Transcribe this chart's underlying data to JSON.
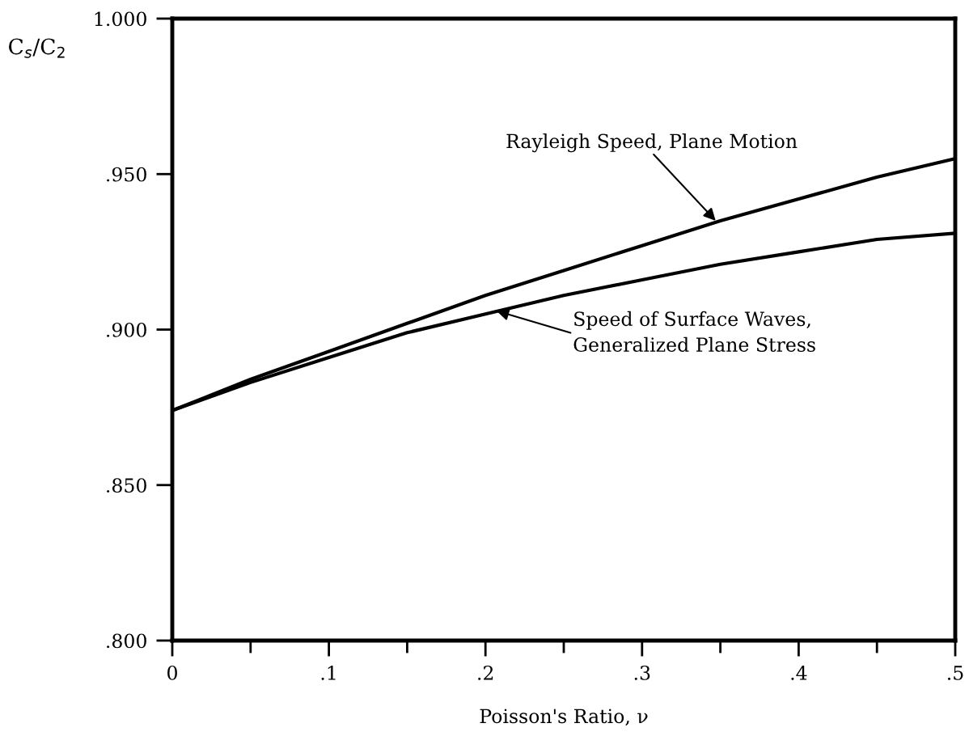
{
  "chart_data": {
    "type": "line",
    "xlabel": "Poisson's Ratio, ν",
    "ylabel": "C$_{s}$/C$_{2}$",
    "x": [
      0,
      0.05,
      0.1,
      0.15,
      0.2,
      0.25,
      0.3,
      0.35,
      0.4,
      0.45,
      0.5
    ],
    "series": [
      {
        "color": "#000000",
        "values": [
          0.874,
          0.884,
          0.893,
          0.902,
          0.911,
          0.919,
          0.927,
          0.935,
          0.942,
          0.949,
          0.955
        ]
      },
      {
        "color": "#000000",
        "values": [
          0.874,
          0.883,
          0.891,
          0.899,
          0.905,
          0.911,
          0.916,
          0.921,
          0.925,
          0.929,
          0.931
        ]
      }
    ],
    "xlim": [
      0,
      0.5
    ],
    "ylim": [
      0.8,
      1.0
    ],
    "xticks": [
      {
        "value": 0,
        "label": "0"
      },
      {
        "value": 0.05,
        "label": null
      },
      {
        "value": 0.1,
        "label": ".1"
      },
      {
        "value": 0.15,
        "label": null
      },
      {
        "value": 0.2,
        "label": ".2"
      },
      {
        "value": 0.25,
        "label": null
      },
      {
        "value": 0.3,
        "label": ".3"
      },
      {
        "value": 0.35,
        "label": null
      },
      {
        "value": 0.4,
        "label": ".4"
      },
      {
        "value": 0.45,
        "label": null
      },
      {
        "value": 0.5,
        "label": ".5"
      }
    ],
    "yticks": [
      {
        "value": 0.8,
        "label": ".800"
      },
      {
        "value": 0.85,
        "label": ".850"
      },
      {
        "value": 0.9,
        "label": ".900"
      },
      {
        "value": 0.95,
        "label": ".950"
      },
      {
        "value": 1.0,
        "label": "1.000"
      }
    ],
    "annotations": [
      {
        "text": "Rayleigh Speed, Plane Motion",
        "x": 0.347,
        "y": 0.935
      },
      {
        "text": "Speed of Surface Waves,\nGeneralized Plane Stress",
        "x": 0.207,
        "y": 0.906
      }
    ],
    "grid": false,
    "legend": false,
    "marker": "none",
    "line_style": "solid"
  }
}
